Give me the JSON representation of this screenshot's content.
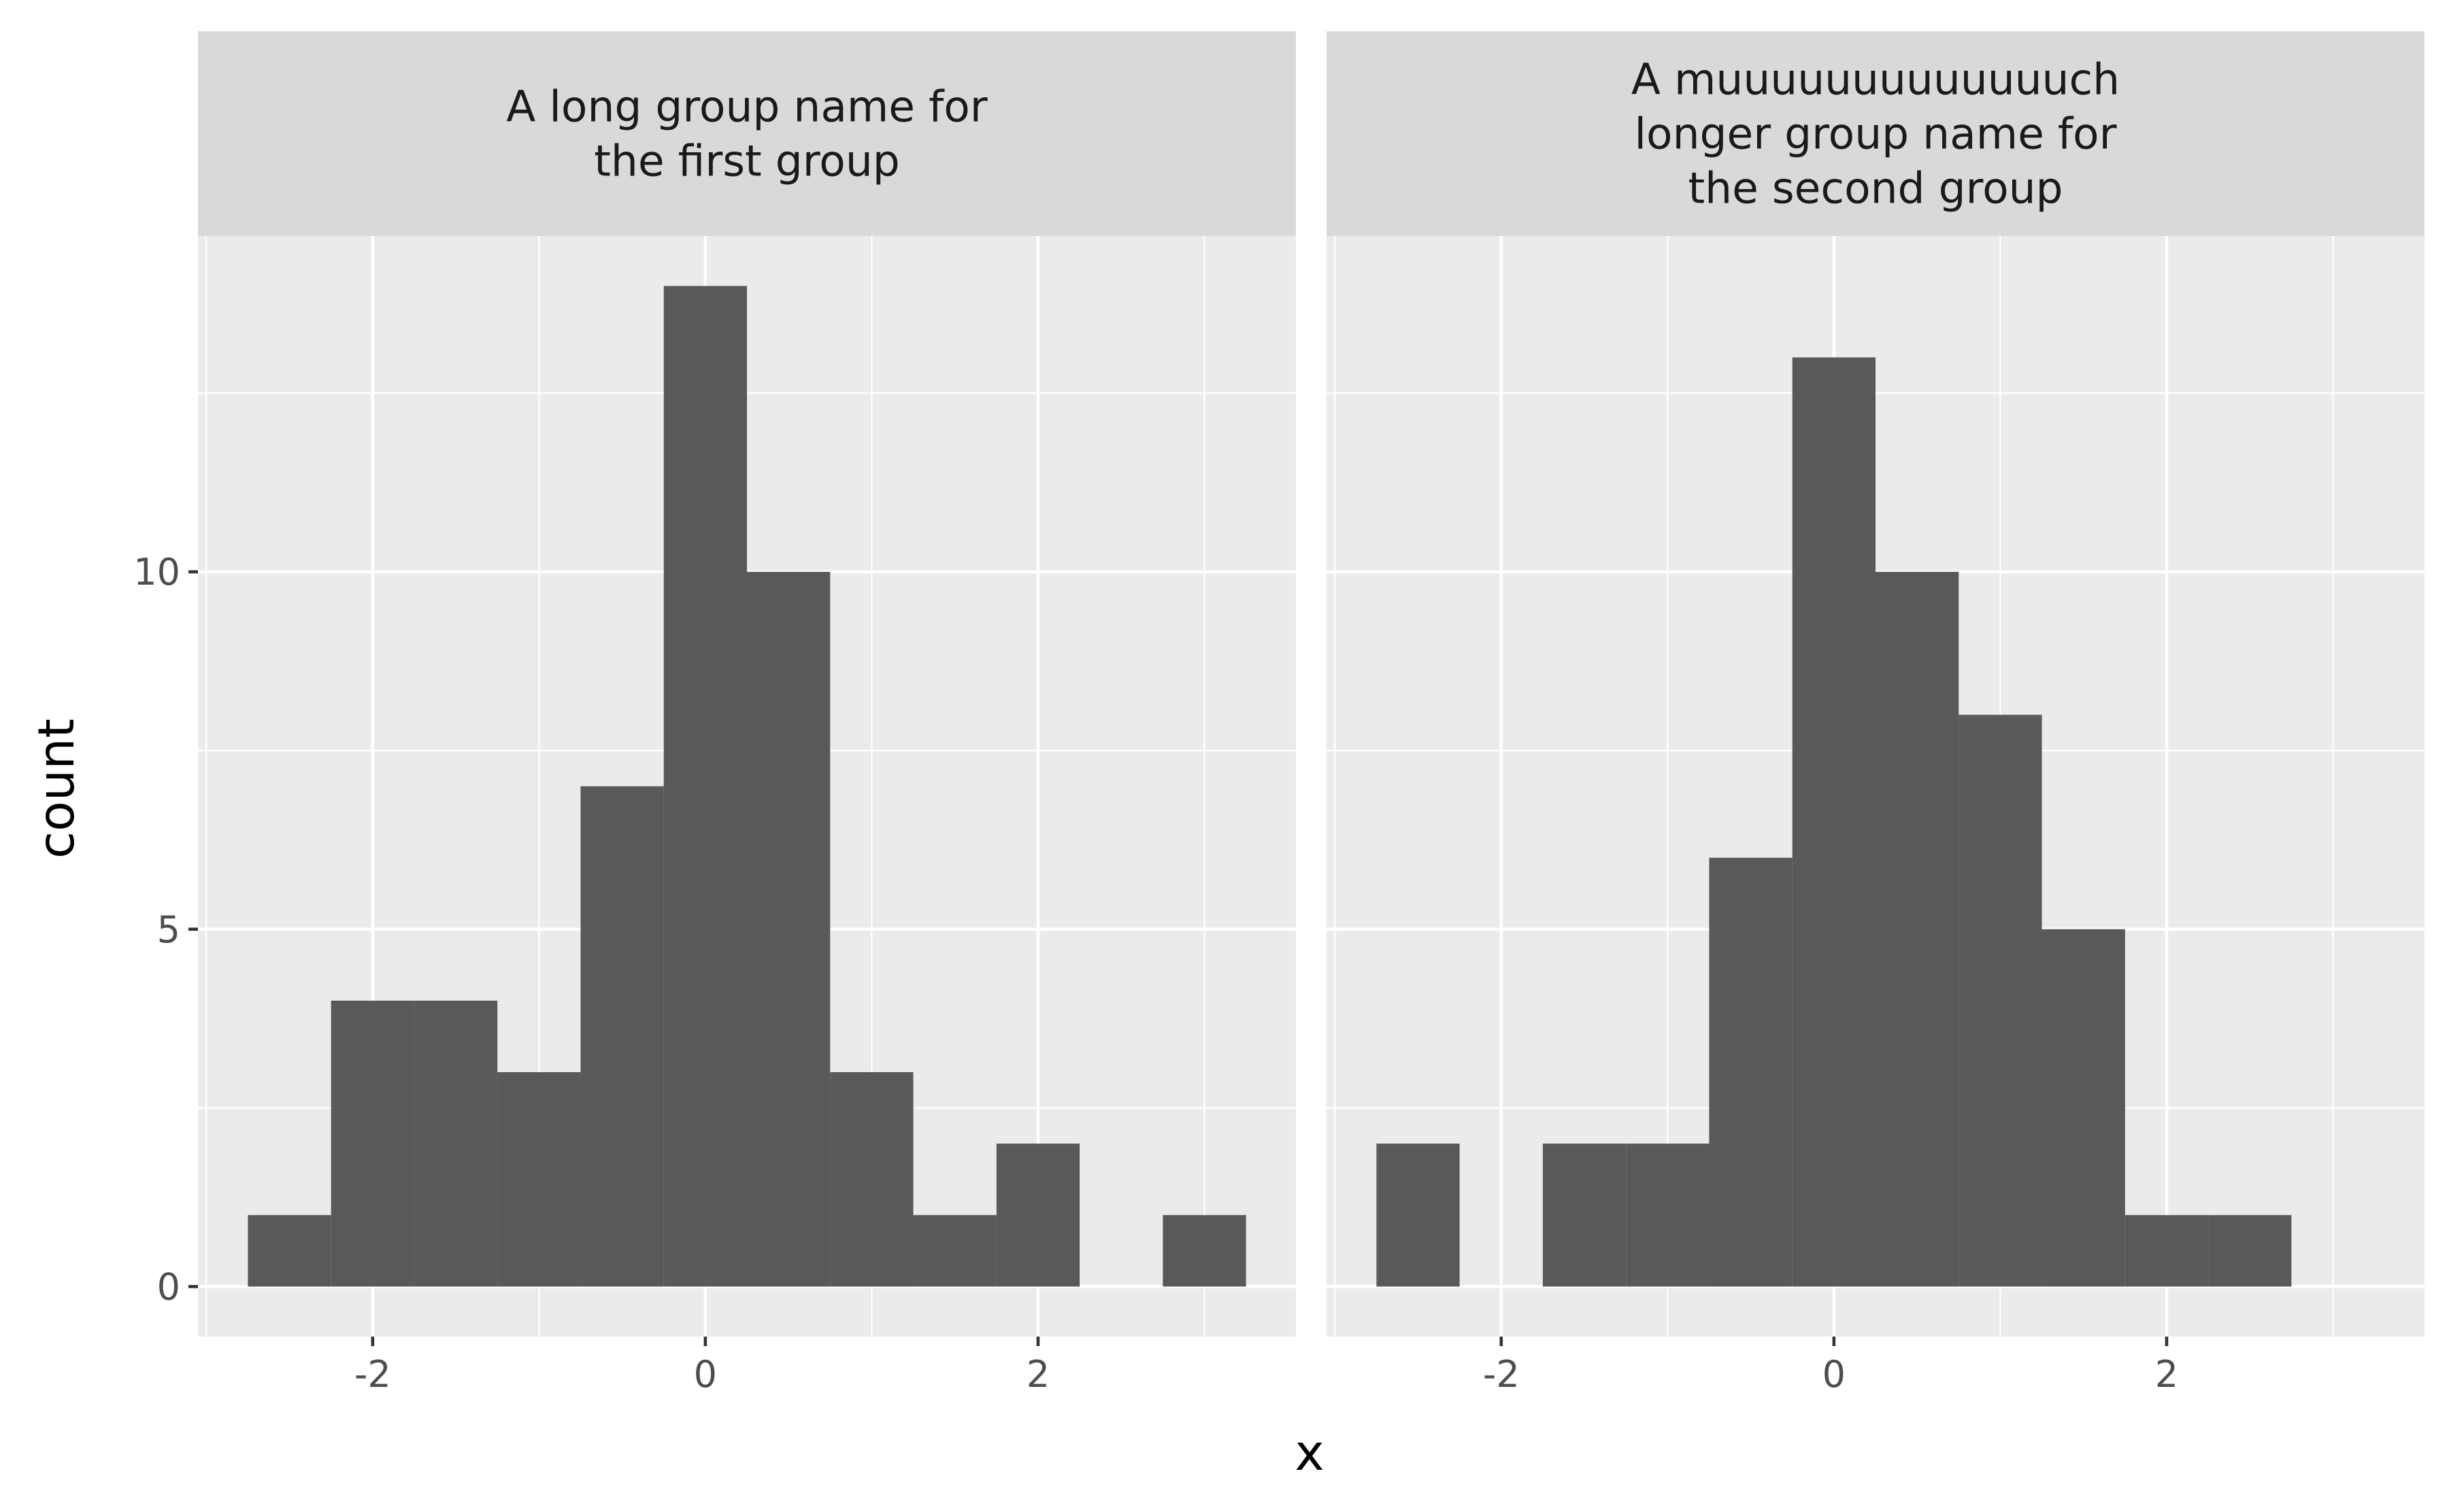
{
  "chart_data": {
    "type": "bar",
    "subtype": "histogram",
    "facet_layout": "1 row x 2 columns, shared y axis",
    "xlabel": "x",
    "ylabel": "count",
    "xlim": [
      -3.05,
      3.55
    ],
    "ylim": [
      -0.7,
      14.7
    ],
    "x_ticks": [
      -2,
      0,
      2
    ],
    "x_tick_labels": [
      "-2",
      "0",
      "2"
    ],
    "y_ticks": [
      0,
      5,
      10
    ],
    "y_tick_labels": [
      "0",
      "5",
      "10"
    ],
    "grid": true,
    "bar_color": "#595959",
    "panel_background": "#ebebeb",
    "strip_background": "#d9d9d9",
    "bin_width": 0.5,
    "panels": [
      {
        "strip_label": [
          "A long group name for",
          "the first group"
        ],
        "bins": [
          {
            "x0": -2.75,
            "x1": -2.25,
            "count": 1
          },
          {
            "x0": -2.25,
            "x1": -1.75,
            "count": 4
          },
          {
            "x0": -1.75,
            "x1": -1.25,
            "count": 4
          },
          {
            "x0": -1.25,
            "x1": -0.75,
            "count": 3
          },
          {
            "x0": -0.75,
            "x1": -0.25,
            "count": 7
          },
          {
            "x0": -0.25,
            "x1": 0.25,
            "count": 14
          },
          {
            "x0": 0.25,
            "x1": 0.75,
            "count": 10
          },
          {
            "x0": 0.75,
            "x1": 1.25,
            "count": 3
          },
          {
            "x0": 1.25,
            "x1": 1.75,
            "count": 1
          },
          {
            "x0": 1.75,
            "x1": 2.25,
            "count": 2
          },
          {
            "x0": 2.25,
            "x1": 2.75,
            "count": 0
          },
          {
            "x0": 2.75,
            "x1": 3.25,
            "count": 1
          }
        ]
      },
      {
        "strip_label": [
          "A muuuuuuuuuuuuuch",
          "longer group name for",
          "the second group"
        ],
        "bins": [
          {
            "x0": -2.75,
            "x1": -2.25,
            "count": 2
          },
          {
            "x0": -2.25,
            "x1": -1.75,
            "count": 0
          },
          {
            "x0": -1.75,
            "x1": -1.25,
            "count": 2
          },
          {
            "x0": -1.25,
            "x1": -0.75,
            "count": 2
          },
          {
            "x0": -0.75,
            "x1": -0.25,
            "count": 6
          },
          {
            "x0": -0.25,
            "x1": 0.25,
            "count": 13
          },
          {
            "x0": 0.25,
            "x1": 0.75,
            "count": 10
          },
          {
            "x0": 0.75,
            "x1": 1.25,
            "count": 8
          },
          {
            "x0": 1.25,
            "x1": 1.75,
            "count": 5
          },
          {
            "x0": 1.75,
            "x1": 2.25,
            "count": 1
          },
          {
            "x0": 2.25,
            "x1": 2.75,
            "count": 1
          }
        ]
      }
    ]
  }
}
